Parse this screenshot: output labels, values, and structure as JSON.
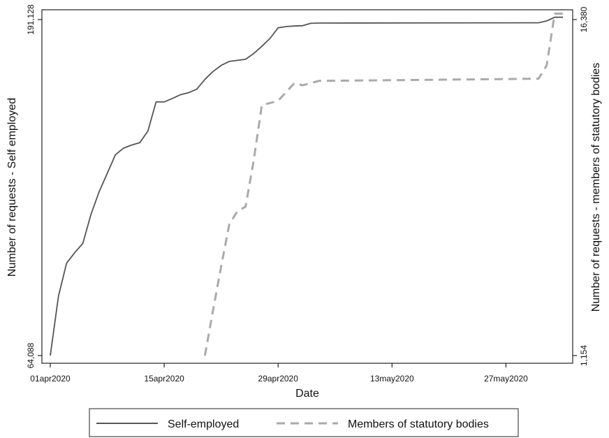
{
  "chart_data": {
    "type": "line",
    "xlabel": "Date",
    "ylabel_left": "Number of requests - Self employed",
    "ylabel_right": "Number of requests - members of statutory bodies",
    "x_ticks": [
      "01apr2020",
      "15apr2020",
      "29apr2020",
      "13may2020",
      "27may2020"
    ],
    "y_left_ticks": [
      "64,088",
      "191,128"
    ],
    "y_right_ticks": [
      "1,154",
      "16,380"
    ],
    "y_left_range": [
      64088,
      191128
    ],
    "y_right_range": [
      1154,
      16380
    ],
    "x_range": [
      "2020-04-01",
      "2020-06-03"
    ],
    "grid": false,
    "legend_position": "bottom",
    "series": [
      {
        "name": "Self-employed",
        "axis": "left",
        "color": "#555555",
        "style": "solid",
        "x": [
          "2020-04-01",
          "2020-04-02",
          "2020-04-03",
          "2020-04-04",
          "2020-04-05",
          "2020-04-06",
          "2020-04-07",
          "2020-04-08",
          "2020-04-09",
          "2020-04-10",
          "2020-04-11",
          "2020-04-12",
          "2020-04-13",
          "2020-04-14",
          "2020-04-15",
          "2020-04-16",
          "2020-04-17",
          "2020-04-18",
          "2020-04-19",
          "2020-04-20",
          "2020-04-21",
          "2020-04-22",
          "2020-04-23",
          "2020-04-24",
          "2020-04-25",
          "2020-04-26",
          "2020-04-27",
          "2020-04-28",
          "2020-04-29",
          "2020-04-30",
          "2020-05-01",
          "2020-05-02",
          "2020-05-03",
          "2020-05-04",
          "2020-05-31",
          "2020-06-01",
          "2020-06-02",
          "2020-06-03"
        ],
        "y": [
          64100,
          86500,
          99000,
          103000,
          106500,
          117500,
          126000,
          133000,
          140000,
          142500,
          143700,
          144600,
          149000,
          160000,
          160000,
          161300,
          162700,
          163500,
          164800,
          168500,
          171500,
          173800,
          175300,
          175700,
          176100,
          178300,
          181000,
          184000,
          188000,
          188500,
          188700,
          188800,
          189700,
          189800,
          189900,
          190600,
          192000,
          192000
        ]
      },
      {
        "name": "Members of statutory bodies",
        "axis": "right",
        "color": "#aaaaaa",
        "style": "dashed",
        "x": [
          "2020-04-20",
          "2020-04-21",
          "2020-04-22",
          "2020-04-23",
          "2020-04-24",
          "2020-04-25",
          "2020-04-26",
          "2020-04-27",
          "2020-04-28",
          "2020-04-29",
          "2020-04-30",
          "2020-05-01",
          "2020-05-02",
          "2020-05-03",
          "2020-05-04",
          "2020-05-31",
          "2020-06-01",
          "2020-06-02",
          "2020-06-03"
        ],
        "y": [
          1150,
          3200,
          5200,
          7100,
          7700,
          7900,
          10000,
          12500,
          12600,
          12700,
          13100,
          13500,
          13400,
          13500,
          13600,
          13700,
          14300,
          16650,
          16650
        ]
      }
    ]
  }
}
